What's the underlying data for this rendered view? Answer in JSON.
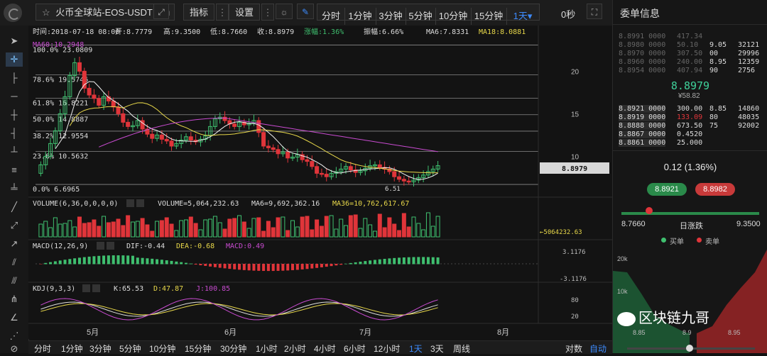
{
  "toolbar": {
    "symbol": "火币全球站-EOS-USDT",
    "indicators_label": "指标",
    "settings_label": "设置",
    "timeframes": [
      "分时",
      "1分钟",
      "3分钟",
      "5分钟",
      "10分钟",
      "15分钟",
      "1天▾"
    ],
    "countdown": "0秒"
  },
  "info_bar": {
    "time": "时间:2018-07-18 08:00",
    "open": "开:8.7779",
    "high": "高:9.3500",
    "low": "低:8.7660",
    "close": "收:8.8979",
    "change": "涨幅:1.36%",
    "amplitude": "振幅:6.66%",
    "ma6": "MA6:7.8331",
    "ma18": "MA18:8.0881",
    "ma60": "MA60:10.2948"
  },
  "fib_levels": [
    {
      "label": "100.0% 23.0809",
      "price": 23.0809
    },
    {
      "label": "78.6% 19.5746",
      "price": 19.5746
    },
    {
      "label": "61.8% 16.8221",
      "price": 16.8221
    },
    {
      "label": "50.0% 14.8887",
      "price": 14.8887
    },
    {
      "label": "38.2% 12.9554",
      "price": 12.9554
    },
    {
      "label": "23.6% 10.5632",
      "price": 10.5632
    },
    {
      "label": "0.0% 6.6965",
      "price": 6.6965
    }
  ],
  "price_axis": [
    {
      "label": "20",
      "value": 20
    },
    {
      "label": "15",
      "value": 15
    },
    {
      "label": "10",
      "value": 10
    }
  ],
  "current_price_tag": "8.8979",
  "low_annotation": "6.51",
  "volume": {
    "header": "VOLUME(6,36,0,0,0,0)",
    "value": "VOLUME=5,064,232.63",
    "ma6": "MA6=9,692,362.16",
    "ma36": "MA36=10,762,617.67",
    "last_tag": "←5064232.63"
  },
  "macd": {
    "header": "MACD(12,26,9)",
    "dif": "DIF:-0.44",
    "dea": "DEA:-0.68",
    "macd": "MACD:0.49",
    "axis_top": "3.1176",
    "axis_bottom": "-3.1176"
  },
  "kdj": {
    "header": "KDJ(9,3,3)",
    "k": "K:65.53",
    "d": "D:47.87",
    "j": "J:100.85",
    "axis_80": "80",
    "axis_20": "20"
  },
  "x_axis": [
    "5月",
    "6月",
    "7月",
    "8月"
  ],
  "bottom_bar": {
    "timeframes": [
      "分时",
      "1分钟",
      "3分钟",
      "5分钟",
      "10分钟",
      "15分钟",
      "30分钟",
      "1小时",
      "2小时",
      "4小时",
      "6小时",
      "12小时",
      "1天",
      "3天",
      "周线"
    ],
    "active": "1天",
    "right": [
      "对数",
      "自动"
    ]
  },
  "orderbook": {
    "title": "委单信息",
    "asks": [
      [
        "8.8991 0000",
        "417.34",
        "",
        ""
      ],
      [
        "8.8980 0000",
        "50.10",
        "9.05",
        "32121"
      ],
      [
        "8.8970 0000",
        "307.50",
        "00",
        "29996"
      ],
      [
        "8.8960 0000",
        "240.00",
        "8.95",
        "12359"
      ],
      [
        "8.8954 0000",
        "407.94",
        "90",
        "2756"
      ]
    ],
    "last_price": "8.8979",
    "last_cny": "¥58.82",
    "bids": [
      [
        "8.8921 0000",
        "300.00",
        "8.85",
        "14860"
      ],
      [
        "8.8919 0000",
        "133.09",
        "80",
        "48035"
      ],
      [
        "8.8888 0000",
        "673.50",
        "75",
        "92002"
      ],
      [
        "8.8867 0000",
        "0.4520",
        "",
        ""
      ],
      [
        "8.8861 0000",
        "25.000",
        "",
        ""
      ]
    ],
    "change_text": "0.12 (1.36%)",
    "buy_price": "8.8921",
    "sell_price": "8.8982",
    "range_low": "8.7660",
    "range_label": "日涨跌",
    "range_high": "9.3500",
    "legend_buy": "买单",
    "legend_sell": "卖单",
    "depth_y": [
      "20k",
      "10k"
    ],
    "depth_x": [
      "8.85",
      "8.9",
      "8.95"
    ],
    "watermark": "区块链九哥"
  },
  "colors": {
    "up": "#3fbf6f",
    "down": "#e0353a",
    "ma6": "#f0f0f0",
    "ma18": "#e8d84a",
    "ma60": "#c84bd0",
    "accent": "#3d8bfd"
  }
}
